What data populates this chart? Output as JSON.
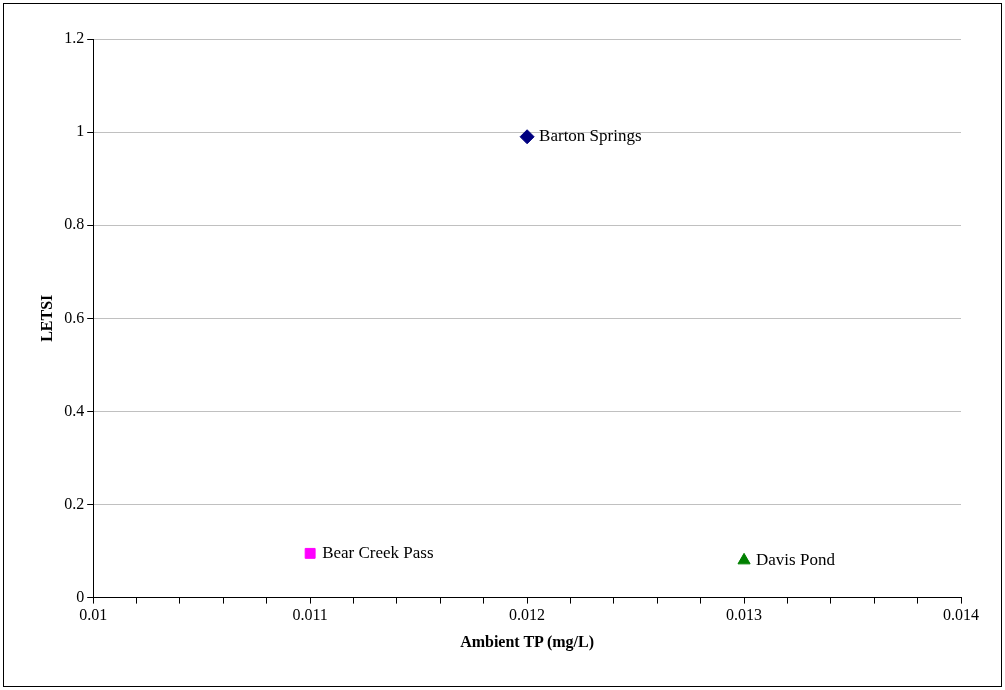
{
  "chart_data": {
    "type": "scatter",
    "xlabel": "Ambient TP (mg/L)",
    "ylabel": "LETSI",
    "series": [
      {
        "name": "Barton Springs",
        "color": "#000080",
        "marker": "diamond",
        "x": [
          0.012
        ],
        "values": [
          0.99
        ]
      },
      {
        "name": "Bear Creek Pass",
        "color": "#ff00ff",
        "marker": "square",
        "x": [
          0.011
        ],
        "values": [
          0.095
        ]
      },
      {
        "name": "Davis Pond",
        "color": "#008000",
        "marker": "triangle",
        "x": [
          0.013
        ],
        "values": [
          0.08
        ]
      }
    ],
    "xlim": [
      0.01,
      0.014
    ],
    "xticks": [
      0.01,
      {
        "value": 0.0102,
        "label": null
      },
      {
        "value": 0.0104,
        "label": null
      },
      {
        "value": 0.0106,
        "label": null
      },
      {
        "value": 0.0108,
        "label": null
      },
      0.011,
      {
        "value": 0.0112,
        "label": null
      },
      {
        "value": 0.0114,
        "label": null
      },
      {
        "value": 0.0116,
        "label": null
      },
      {
        "value": 0.0118,
        "label": null
      },
      0.012,
      {
        "value": 0.0122,
        "label": null
      },
      {
        "value": 0.0124,
        "label": null
      },
      {
        "value": 0.0126,
        "label": null
      },
      {
        "value": 0.0128,
        "label": null
      },
      0.013,
      {
        "value": 0.0132,
        "label": null
      },
      {
        "value": 0.0134,
        "label": null
      },
      {
        "value": 0.0136,
        "label": null
      },
      {
        "value": 0.0138,
        "label": null
      },
      0.014
    ],
    "ylim": [
      0,
      1.2
    ],
    "yticks": [
      0,
      0.2,
      0.4,
      0.6,
      0.8,
      1,
      1.2
    ],
    "grid": "y",
    "legend": false
  }
}
